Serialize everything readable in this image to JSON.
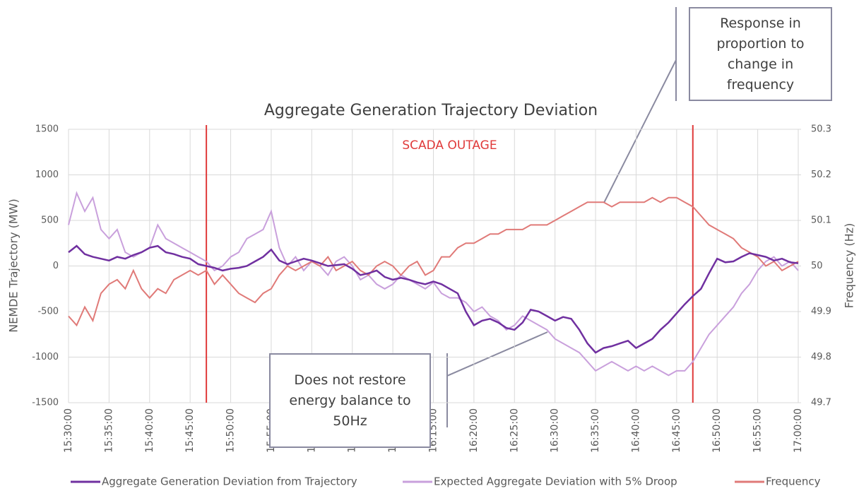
{
  "chart_data": {
    "type": "line",
    "title": "Aggregate Generation Trajectory Deviation",
    "y_label": "NEMDE Trajectory (MW)",
    "y2_label": "Frequency (Hz)",
    "x": [
      "15:30:00",
      "15:31:00",
      "15:32:00",
      "15:33:00",
      "15:34:00",
      "15:35:00",
      "15:36:00",
      "15:37:00",
      "15:38:00",
      "15:39:00",
      "15:40:00",
      "15:41:00",
      "15:42:00",
      "15:43:00",
      "15:44:00",
      "15:45:00",
      "15:46:00",
      "15:47:00",
      "15:48:00",
      "15:49:00",
      "15:50:00",
      "15:51:00",
      "15:52:00",
      "15:53:00",
      "15:54:00",
      "15:55:00",
      "15:56:00",
      "15:57:00",
      "15:58:00",
      "15:59:00",
      "16:00:00",
      "16:01:00",
      "16:02:00",
      "16:03:00",
      "16:04:00",
      "16:05:00",
      "16:06:00",
      "16:07:00",
      "16:08:00",
      "16:09:00",
      "16:10:00",
      "16:11:00",
      "16:12:00",
      "16:13:00",
      "16:14:00",
      "16:15:00",
      "16:16:00",
      "16:17:00",
      "16:18:00",
      "16:19:00",
      "16:20:00",
      "16:21:00",
      "16:22:00",
      "16:23:00",
      "16:24:00",
      "16:25:00",
      "16:26:00",
      "16:27:00",
      "16:28:00",
      "16:29:00",
      "16:30:00",
      "16:31:00",
      "16:32:00",
      "16:33:00",
      "16:34:00",
      "16:35:00",
      "16:36:00",
      "16:37:00",
      "16:38:00",
      "16:39:00",
      "16:40:00",
      "16:41:00",
      "16:42:00",
      "16:43:00",
      "16:44:00",
      "16:45:00",
      "16:46:00",
      "16:47:00",
      "16:48:00",
      "16:49:00",
      "16:50:00",
      "16:51:00",
      "16:52:00",
      "16:53:00",
      "16:54:00",
      "16:55:00",
      "16:56:00",
      "16:57:00",
      "16:58:00",
      "16:59:00",
      "17:00:00"
    ],
    "xlim": [
      "15:30:00",
      "17:00:00"
    ],
    "xticks": [
      "15:30:00",
      "15:35:00",
      "15:40:00",
      "15:45:00",
      "15:50:00",
      "15:55:00",
      "16:00:00",
      "16:05:00",
      "16:10:00",
      "16:15:00",
      "16:20:00",
      "16:25:00",
      "16:30:00",
      "16:35:00",
      "16:40:00",
      "16:45:00",
      "16:50:00",
      "16:55:00",
      "17:00:00"
    ],
    "ylim": [
      -1500,
      1500
    ],
    "yticks": [
      -1500,
      -1000,
      -500,
      0,
      500,
      1000,
      1500
    ],
    "y2lim": [
      49.7,
      50.3
    ],
    "y2ticks": [
      49.7,
      49.8,
      49.9,
      50,
      50.1,
      50.2,
      50.3
    ],
    "grid": true,
    "legend": "bottom",
    "series": [
      {
        "name": "Aggregate Generation Deviation from Trajectory",
        "color": "#7030a0",
        "values": [
          150,
          220,
          130,
          100,
          80,
          60,
          100,
          80,
          120,
          150,
          200,
          220,
          150,
          130,
          100,
          80,
          20,
          0,
          -20,
          -50,
          -30,
          -20,
          0,
          50,
          100,
          180,
          60,
          20,
          50,
          80,
          60,
          30,
          0,
          10,
          20,
          -30,
          -100,
          -80,
          -50,
          -120,
          -150,
          -130,
          -150,
          -180,
          -200,
          -170,
          -200,
          -250,
          -300,
          -500,
          -650,
          -600,
          -580,
          -620,
          -680,
          -700,
          -620,
          -480,
          -500,
          -550,
          -600,
          -560,
          -580,
          -700,
          -850,
          -950,
          -900,
          -880,
          -850,
          -820,
          -900,
          -850,
          -800,
          -700,
          -620,
          -520,
          -420,
          -330,
          -250,
          -80,
          80,
          40,
          50,
          100,
          140,
          120,
          100,
          60,
          80,
          40,
          30
        ]
      },
      {
        "name": "Expected Aggregate Deviation with 5% Droop",
        "color": "#c9a0dc",
        "values": [
          450,
          800,
          600,
          750,
          400,
          300,
          400,
          150,
          100,
          150,
          200,
          450,
          300,
          250,
          200,
          150,
          100,
          50,
          -50,
          0,
          100,
          150,
          300,
          350,
          400,
          600,
          200,
          0,
          100,
          -50,
          50,
          0,
          -100,
          50,
          100,
          0,
          -150,
          -100,
          -200,
          -250,
          -200,
          -100,
          -150,
          -200,
          -250,
          -180,
          -300,
          -350,
          -350,
          -400,
          -500,
          -450,
          -550,
          -600,
          -700,
          -650,
          -550,
          -600,
          -650,
          -700,
          -800,
          -850,
          -900,
          -950,
          -1050,
          -1150,
          -1100,
          -1050,
          -1100,
          -1150,
          -1100,
          -1150,
          -1100,
          -1150,
          -1200,
          -1150,
          -1150,
          -1050,
          -900,
          -750,
          -650,
          -550,
          -450,
          -300,
          -200,
          -50,
          50,
          100,
          0,
          50,
          -50
        ]
      },
      {
        "name": "Frequency",
        "color": "#e07a78",
        "axis": "y2",
        "values": [
          49.89,
          49.87,
          49.91,
          49.88,
          49.94,
          49.96,
          49.97,
          49.95,
          49.99,
          49.95,
          49.93,
          49.95,
          49.94,
          49.97,
          49.98,
          49.99,
          49.98,
          49.99,
          49.96,
          49.98,
          49.96,
          49.94,
          49.93,
          49.92,
          49.94,
          49.95,
          49.98,
          50,
          49.99,
          50,
          50.01,
          50,
          50.02,
          49.99,
          50,
          50.01,
          49.99,
          49.98,
          50,
          50.01,
          50,
          49.98,
          50,
          50.01,
          49.98,
          49.99,
          50.02,
          50.02,
          50.04,
          50.05,
          50.05,
          50.06,
          50.07,
          50.07,
          50.08,
          50.08,
          50.08,
          50.09,
          50.09,
          50.09,
          50.1,
          50.11,
          50.12,
          50.13,
          50.14,
          50.14,
          50.14,
          50.13,
          50.14,
          50.14,
          50.14,
          50.14,
          50.15,
          50.14,
          50.15,
          50.15,
          50.14,
          50.13,
          50.11,
          50.09,
          50.08,
          50.07,
          50.06,
          50.04,
          50.03,
          50.02,
          50,
          50.01,
          49.99,
          50,
          50.01
        ]
      }
    ],
    "outage": {
      "label": "SCADA OUTAGE",
      "start": "15:47:00",
      "end": "16:47:00",
      "color": "#e03a3a"
    },
    "annotations": [
      {
        "text": "Response in proportion to change in frequency"
      },
      {
        "text": "Does not restore energy balance to 50Hz"
      }
    ]
  }
}
